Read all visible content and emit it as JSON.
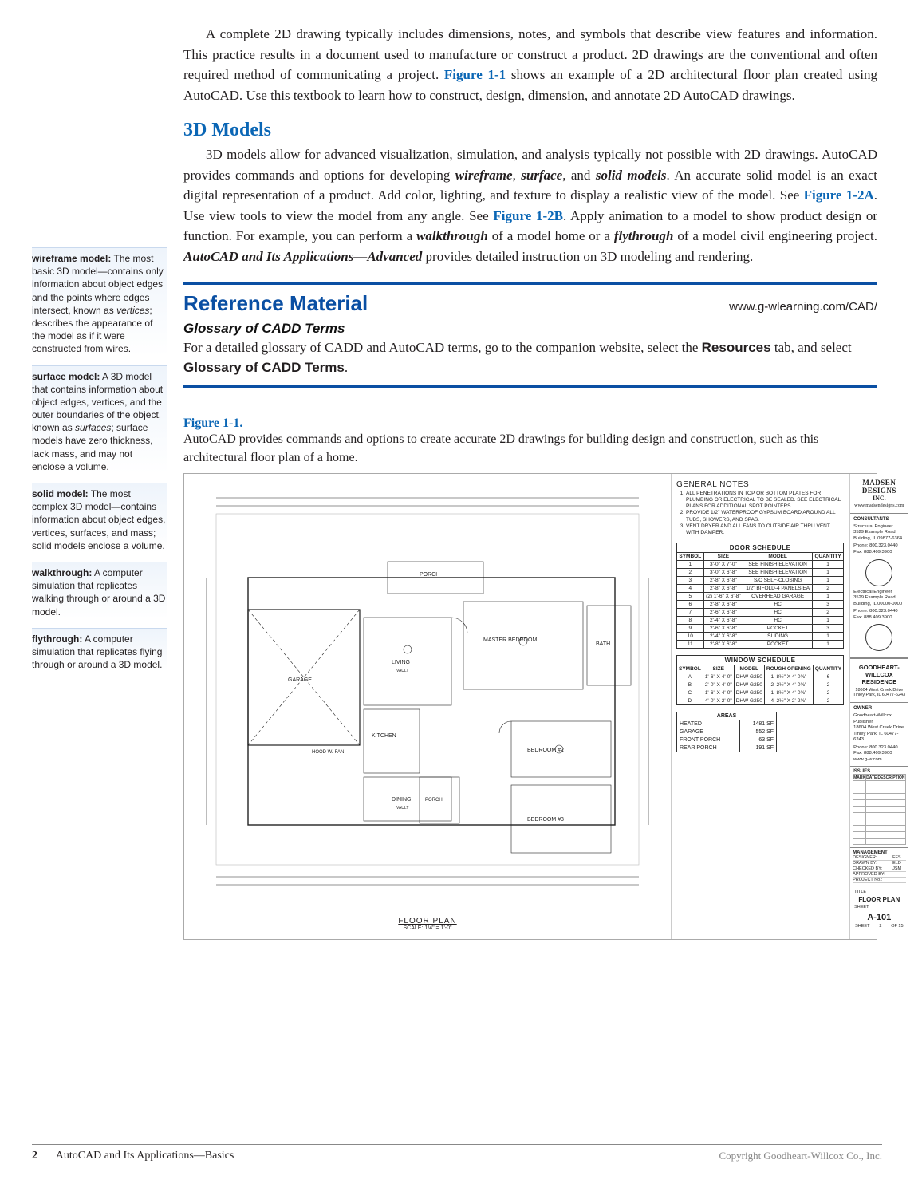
{
  "para_intro": "A complete 2D drawing typically includes dimensions, notes, and symbols that describe view features and information. This practice results in a document used to manufacture or construct a product. 2D drawings are the conventional and often required method of communicating a project. ",
  "figref_11": "Figure 1-1",
  "para_intro2": " shows an example of a 2D architectural floor plan created using AutoCAD. Use this textbook to learn how to construct, design, dimension, and annotate 2D AutoCAD drawings.",
  "h_3d": "3D Models",
  "para_3d_a": "3D models allow for advanced visualization, simulation, and analysis typically not possible with 2D drawings. AutoCAD provides commands and options for developing ",
  "em_wire": "wireframe",
  "para_3d_b": ", ",
  "em_surf": "surface",
  "para_3d_c": ", and ",
  "em_solid": "solid models",
  "para_3d_d": ". An accurate solid model is an exact digital representation of a product. Add color, lighting, and texture to display a realistic view of the model. See ",
  "figref_12a": "Figure 1-2A",
  "para_3d_e": ". Use view tools to view the model from any angle. See ",
  "figref_12b": "Figure 1-2B",
  "para_3d_f": ". Apply animation to a model to show product design or function. For example, you can perform a ",
  "em_walk": "walkthrough",
  "para_3d_g": " of a model home or a ",
  "em_fly": "flythrough",
  "para_3d_h": " of a model civil engineering project. ",
  "em_acad": "AutoCAD and Its Applications—Advanced",
  "para_3d_i": " provides detailed instruction on 3D modeling and rendering.",
  "ref_title": "Reference Material",
  "ref_url": "www.g-wlearning.com/CAD/",
  "ref_sub": "Glossary of CADD Terms",
  "ref_body_a": "For a detailed glossary of CADD and AutoCAD terms, go to the companion website, select the ",
  "ref_b1": "Resources",
  "ref_body_b": " tab, and select ",
  "ref_b2": "Glossary of CADD Terms",
  "ref_body_c": ".",
  "fig_label": "Figure 1-1.",
  "fig_caption": "AutoCAD provides commands and options to create accurate 2D drawings for building design and construction, such as this architectural floor plan of a home.",
  "terms": {
    "wire_h": "wireframe model:",
    "wire_b": " The most basic 3D model—contains only information about object edges and the points where edges intersect, known as ",
    "wire_i": "vertices",
    "wire_b2": "; describes the appearance of the model as if it were constructed from wires.",
    "surf_h": "surface model:",
    "surf_b": " A 3D model that contains information about object edges, vertices, and the outer boundaries of the object, known as ",
    "surf_i": "surfaces",
    "surf_b2": "; surface models have zero thickness, lack mass, and may not enclose a volume.",
    "solid_h": "solid model:",
    "solid_b": " The most complex 3D model—contains information about object edges, vertices, surfaces, and mass; solid models enclose a volume.",
    "walk_h": "walkthrough:",
    "walk_b": " A computer simulation that replicates walking through or around a 3D model.",
    "fly_h": "flythrough:",
    "fly_b": " A computer simulation that replicates flying through or around a 3D model."
  },
  "notes_h": "GENERAL NOTES",
  "notes": [
    "ALL PENETRATIONS IN TOP OR BOTTOM PLATES FOR PLUMBING OR ELECTRICAL TO BE SEALED. SEE ELECTRICAL PLANS FOR ADDITIONAL SPOT POINTERS.",
    "PROVIDE 1/2\" WATERPROOF GYPSUM BOARD AROUND ALL TUBS, SHOWERS, AND SPAS.",
    "VENT DRYER AND ALL FANS TO OUTSIDE AIR THRU VENT WITH DAMPER."
  ],
  "door_title": "DOOR SCHEDULE",
  "door_cols": [
    "SYMBOL",
    "SIZE",
    "MODEL",
    "QUANTITY"
  ],
  "doors": [
    [
      "1",
      "3'-0\" X 7'-0\"",
      "SEE FINISH ELEVATION",
      "1"
    ],
    [
      "2",
      "3'-0\" X 6'-8\"",
      "SEE FINISH ELEVATION",
      "1"
    ],
    [
      "3",
      "2'-8\" X 6'-8\"",
      "S/C SELF-CLOSING",
      "1"
    ],
    [
      "4",
      "2'-8\" X 6'-8\"",
      "1/2\" BIFOLD-4 PANELS EA",
      "2"
    ],
    [
      "5",
      "(2) 1'-6\" X 6'-8\"",
      "OVERHEAD GARAGE",
      "1"
    ],
    [
      "6",
      "2'-8\" X 6'-8\"",
      "HC",
      "3"
    ],
    [
      "7",
      "2'-6\" X 6'-8\"",
      "HC",
      "2"
    ],
    [
      "8",
      "2'-4\" X 6'-8\"",
      "HC",
      "1"
    ],
    [
      "9",
      "2'-6\" X 6'-8\"",
      "POCKET",
      "3"
    ],
    [
      "10",
      "2'-4\" X 6'-8\"",
      "SLIDING",
      "1"
    ],
    [
      "11",
      "2'-8\" X 6'-8\"",
      "POCKET",
      "1"
    ]
  ],
  "window_title": "WINDOW SCHEDULE",
  "window_cols": [
    "SYMBOL",
    "SIZE",
    "MODEL",
    "ROUGH OPENING",
    "QUANTITY"
  ],
  "windows": [
    [
      "A",
      "1'-6\" X 4'-0\"",
      "DHW G250",
      "1'-8½\" X 4'-0⅝\"",
      "6"
    ],
    [
      "B",
      "2'-0\" X 4'-0\"",
      "DHW G250",
      "2'-2½\" X 4'-0⅝\"",
      "2"
    ],
    [
      "C",
      "1'-6\" X 4'-0\"",
      "DHW G250",
      "1'-8½\" X 4'-0⅝\"",
      "2"
    ],
    [
      "D",
      "4'-0\" X 2'-0\"",
      "DHW G250",
      "4'-2½\" X 2'-2⅝\"",
      "2"
    ]
  ],
  "areas_h": "AREAS",
  "areas": [
    [
      "HEATED",
      "1481 SF"
    ],
    [
      "GARAGE",
      "552 SF"
    ],
    [
      "FRONT PORCH",
      "63 SF"
    ],
    [
      "REAR PORCH",
      "191 SF"
    ]
  ],
  "rooms": {
    "porch": "PORCH",
    "garage": "GARAGE",
    "living": "LIVING",
    "kitchen": "KITCHEN",
    "dining": "DINING",
    "master": "MASTER BEDROOM",
    "bath": "BATH",
    "bed2": "BEDROOM #2",
    "bed3": "BEDROOM #3",
    "hood": "HOOD W/ FAN",
    "vault1": "VAULT",
    "vault2": "VAULT"
  },
  "plan_t": "FLOOR PLAN",
  "plan_s": "SCALE: 1/4\" = 1'-0\"",
  "tb": {
    "firm": "MADSEN DESIGNS",
    "firm2": "INC.",
    "firm_url": "www.madsendesigns.com",
    "cons_h": "CONSULTANTS",
    "se": "Structural Engineer\n3529 Example Road\nBuilding, IL 09877-6364",
    "se_ph": "Phone: 800.323.0440\nFax: 888.409.3900",
    "ee": "Electrical Engineer\n3529 Example Road\nBuilding, IL 00000-0000",
    "ee_ph": "Phone: 800.323.0440\nFax: 888.409.3900",
    "client1": "GOODHEART-",
    "client2": "WILLCOX RESIDENCE",
    "addr": "18604 West Creek Drive\nTinley Park, IL 60477-6243",
    "owner_h": "OWNER",
    "owner": "Goodheart-Willcox Publisher\n18604 West Creek Drive\nTinley Park, IL 60477-6243",
    "owner_ph": "Phone: 800.323.0440\nFax: 888.409.3900\nwww.g-w.com",
    "issues_h": "ISSUES",
    "issues_cols": [
      "MARK",
      "DATE",
      "DESCRIPTION"
    ],
    "mgmt_h": "MANAGEMENT",
    "mgmt": [
      [
        "DESIGNER:",
        "FFS"
      ],
      [
        "DRAWN BY:",
        "ELD"
      ],
      [
        "CHECKED BY:",
        "JSM"
      ],
      [
        "APPROVED BY:",
        ""
      ],
      [
        "PROJECT No.:",
        ""
      ]
    ],
    "sheet_lab": "TITLE",
    "sheet_title": "FLOOR PLAN",
    "sheet_lab2": "SHEET",
    "sheet_num": "A-101",
    "sheet_of_l": "SHEET",
    "sheet_of_m": "2",
    "sheet_of_r": "OF    15"
  },
  "footer_pg": "2",
  "footer_book": "AutoCAD and Its Applications—Basics",
  "footer_cr": "Copyright Goodheart-Willcox Co., Inc."
}
